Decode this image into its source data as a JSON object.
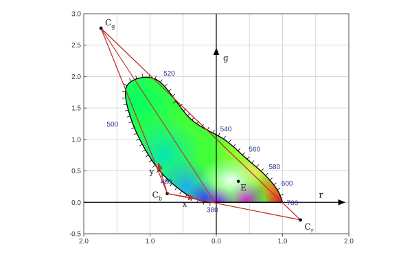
{
  "colors": {
    "triangle": "#c0312b",
    "axis": "#000000",
    "grid": "#cfcfcf",
    "wavelength_label": "#2a2f8e",
    "frame": "#555555"
  },
  "axes": {
    "x_name": "r",
    "y_name": "g",
    "x_ticks": [
      "2.0",
      "1.0",
      "0.0",
      "1.0",
      "2.0"
    ],
    "x_tick_values": [
      -2,
      -1,
      0,
      1,
      2
    ],
    "y_ticks": [
      "-0.5",
      "0.0",
      "0.5",
      "1.0",
      "1.5",
      "2.0",
      "2.5",
      "3.0"
    ],
    "y_tick_values": [
      -0.5,
      0,
      0.5,
      1,
      1.5,
      2,
      2.5,
      3
    ],
    "xlim": [
      -2,
      2
    ],
    "ylim": [
      -0.5,
      3
    ],
    "grid": true
  },
  "primaries": {
    "Cg": {
      "letter": "C",
      "sub": "g",
      "r": -1.74,
      "g": 2.77
    },
    "Cb": {
      "letter": "C",
      "sub": "b",
      "r": -0.74,
      "g": 0.14
    },
    "Cr": {
      "letter": "C",
      "sub": "r",
      "r": 1.27,
      "g": -0.28
    }
  },
  "white_point": {
    "label": "E",
    "r": 0.333,
    "g": 0.333
  },
  "basis_vectors": {
    "x_label": "x",
    "y_label": "y"
  },
  "spectral_locus": [
    {
      "nm": 380,
      "label": "380",
      "r": 0.0,
      "g": 0.0
    },
    {
      "nm": 460,
      "label": "",
      "r": -0.17,
      "g": 0.01
    },
    {
      "nm": 480,
      "label": "480",
      "r": -0.47,
      "g": 0.14
    },
    {
      "nm": 490,
      "label": "",
      "r": -0.9,
      "g": 0.56
    },
    {
      "nm": 500,
      "label": "500",
      "r": -1.26,
      "g": 1.25
    },
    {
      "nm": 510,
      "label": "",
      "r": -1.35,
      "g": 1.85
    },
    {
      "nm": 520,
      "label": "520",
      "r": -0.9,
      "g": 1.95
    },
    {
      "nm": 530,
      "label": "",
      "r": -0.38,
      "g": 1.32
    },
    {
      "nm": 540,
      "label": "540",
      "r": 0.12,
      "g": 1.0
    },
    {
      "nm": 560,
      "label": "560",
      "r": 0.45,
      "g": 0.7
    },
    {
      "nm": 580,
      "label": "580",
      "r": 0.73,
      "g": 0.44
    },
    {
      "nm": 600,
      "label": "600",
      "r": 0.92,
      "g": 0.2
    },
    {
      "nm": 700,
      "label": "700",
      "r": 1.0,
      "g": 0.0
    }
  ]
}
